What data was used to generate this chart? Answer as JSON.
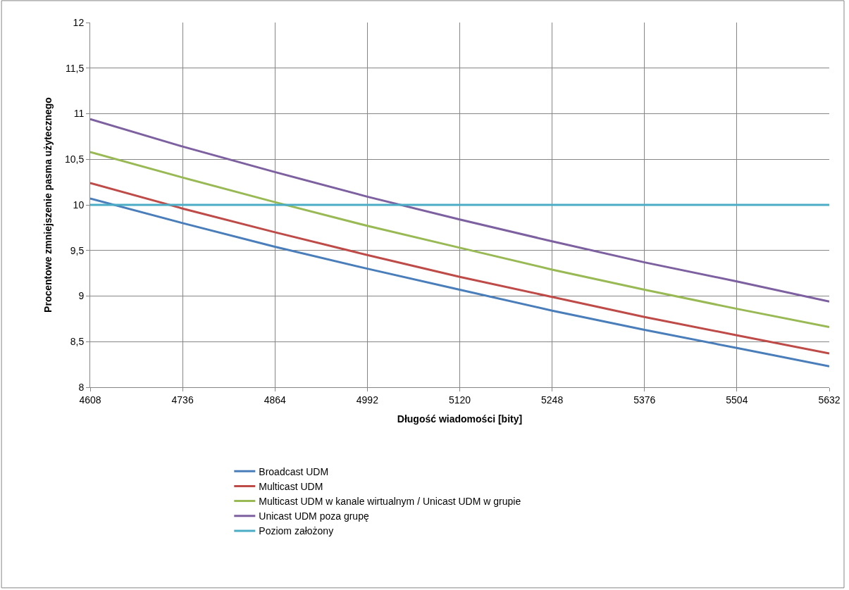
{
  "chart_data": {
    "type": "line",
    "xlabel": "Długość wiadomości [bity]",
    "ylabel": "Procentowe zmniejszenie pasma użytecznego",
    "x": [
      4608,
      4736,
      4864,
      4992,
      5120,
      5248,
      5376,
      5504,
      5632
    ],
    "xlim": [
      4608,
      5632
    ],
    "xticks": [
      4608,
      4736,
      4864,
      4992,
      5120,
      5248,
      5376,
      5504,
      5632
    ],
    "ylim": [
      8,
      12
    ],
    "yticks": [
      8,
      {
        "value": 8.5,
        "label": "8,5"
      },
      9,
      {
        "value": 9.5,
        "label": "9,5"
      },
      10,
      {
        "value": 10.5,
        "label": "10,5"
      },
      11,
      {
        "value": 11.5,
        "label": "11,5"
      },
      12
    ],
    "grid": true,
    "legend": "bottom",
    "marker": "none",
    "line_style": "solid",
    "series": [
      {
        "name": "Broadcast UDM",
        "color": "#4a7ebb",
        "values": [
          10.07,
          9.8,
          9.54,
          9.3,
          9.07,
          8.84,
          8.63,
          8.43,
          8.23
        ]
      },
      {
        "name": "Multicast UDM",
        "color": "#be4b48",
        "values": [
          10.24,
          9.96,
          9.7,
          9.45,
          9.21,
          8.99,
          8.77,
          8.57,
          8.37
        ]
      },
      {
        "name": "Multicast UDM w kanale wirtualnym / Unicast UDM w grupie",
        "color": "#98b954",
        "values": [
          10.58,
          10.3,
          10.03,
          9.77,
          9.53,
          9.29,
          9.07,
          8.86,
          8.66
        ]
      },
      {
        "name": "Unicast UDM poza grupę",
        "color": "#7d60a0",
        "values": [
          10.94,
          10.64,
          10.36,
          10.09,
          9.84,
          9.6,
          9.37,
          9.16,
          8.94
        ]
      },
      {
        "name": "Poziom założony",
        "color": "#4bacc6",
        "values": [
          10,
          10,
          10,
          10,
          10,
          10,
          10,
          10,
          10
        ]
      }
    ]
  }
}
